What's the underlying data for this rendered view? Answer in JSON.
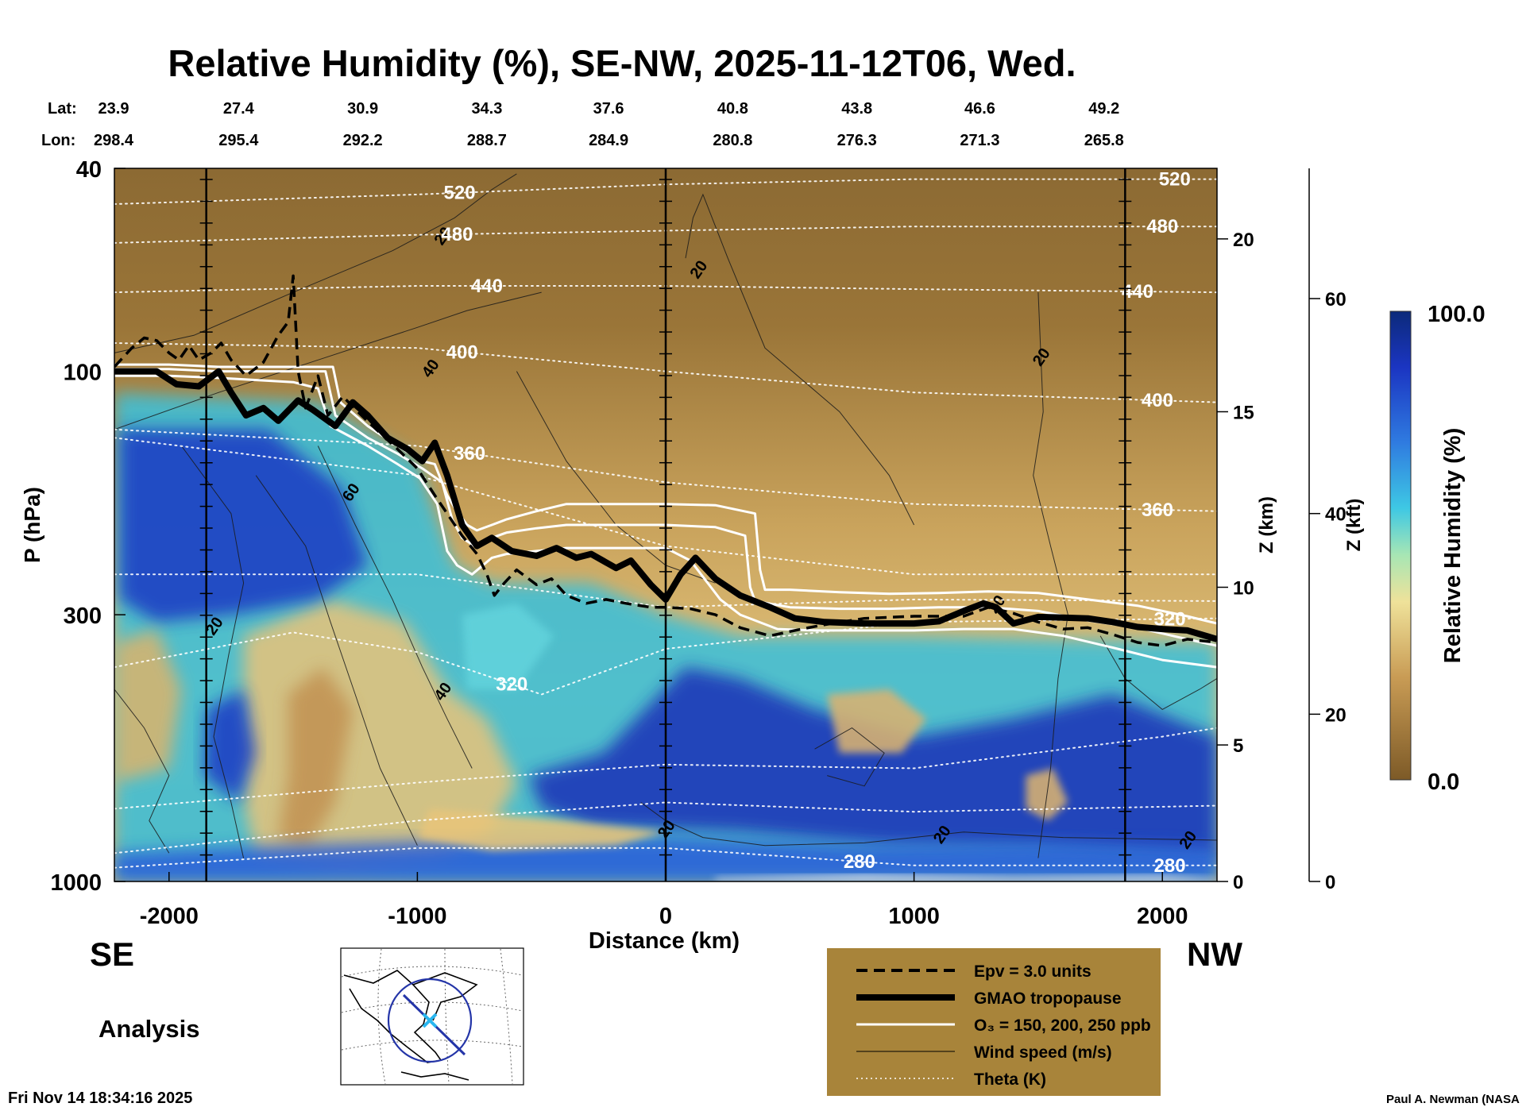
{
  "chart_data": {
    "type": "heatmap",
    "title": "Relative Humidity (%), SE-NW, 2025-11-12T06, Wed.",
    "xlabel": "Distance (km)",
    "ylabel": "P (hPa)",
    "right_axis_1_label": "Z (km)",
    "right_axis_2_label": "Z (kft)",
    "colorbar_label": "Relative Humidity (%)",
    "colorbar_max_label": "100.0",
    "colorbar_min_label": "0.0",
    "colorbar_range": [
      0,
      100
    ],
    "xlim": [
      -2220,
      2220
    ],
    "ylim": [
      1000,
      40
    ],
    "y_scale": "log",
    "x_ticks": [
      {
        "v": -2000,
        "label": "-2000"
      },
      {
        "v": -1000,
        "label": "-1000"
      },
      {
        "v": 0,
        "label": "0"
      },
      {
        "v": 1000,
        "label": "1000"
      },
      {
        "v": 2000,
        "label": "2000"
      }
    ],
    "y_ticks": [
      {
        "p": 40,
        "label": "40"
      },
      {
        "p": 100,
        "label": "100"
      },
      {
        "p": 300,
        "label": "300"
      },
      {
        "p": 1000,
        "label": "1000"
      }
    ],
    "z_km_ticks": [
      {
        "p": 1000,
        "label": "0"
      },
      {
        "p": 540,
        "label": "5"
      },
      {
        "p": 265,
        "label": "10"
      },
      {
        "p": 120,
        "label": "15"
      },
      {
        "p": 55,
        "label": "20"
      }
    ],
    "z_kft_ticks": [
      {
        "p": 1000,
        "label": "0"
      },
      {
        "p": 470,
        "label": "20"
      },
      {
        "p": 190,
        "label": "40"
      },
      {
        "p": 72,
        "label": "60"
      }
    ],
    "lat_label": "Lat:",
    "lon_label": "Lon:",
    "stations": [
      {
        "x": -2220,
        "lat": "23.9",
        "lon": "298.4"
      },
      {
        "x": -1720,
        "lat": "27.4",
        "lon": "295.4"
      },
      {
        "x": -1220,
        "lat": "30.9",
        "lon": "292.2"
      },
      {
        "x": -720,
        "lat": "34.3",
        "lon": "288.7"
      },
      {
        "x": -230,
        "lat": "37.6",
        "lon": "284.9"
      },
      {
        "x": 270,
        "lat": "40.8",
        "lon": "280.8"
      },
      {
        "x": 770,
        "lat": "43.8",
        "lon": "276.3"
      },
      {
        "x": 1265,
        "lat": "46.6",
        "lon": "271.3"
      },
      {
        "x": 1765,
        "lat": "49.2",
        "lon": "265.8"
      }
    ],
    "vertical_markers_km": [
      -1850,
      0,
      1850
    ],
    "tropopause": [
      [
        -2220,
        100
      ],
      [
        -2050,
        100
      ],
      [
        -1970,
        106
      ],
      [
        -1880,
        107
      ],
      [
        -1800,
        100
      ],
      [
        -1750,
        110
      ],
      [
        -1690,
        122
      ],
      [
        -1620,
        118
      ],
      [
        -1560,
        125
      ],
      [
        -1480,
        114
      ],
      [
        -1420,
        119
      ],
      [
        -1330,
        128
      ],
      [
        -1260,
        115
      ],
      [
        -1200,
        122
      ],
      [
        -1120,
        135
      ],
      [
        -1040,
        142
      ],
      [
        -980,
        150
      ],
      [
        -930,
        138
      ],
      [
        -880,
        160
      ],
      [
        -820,
        200
      ],
      [
        -760,
        220
      ],
      [
        -700,
        212
      ],
      [
        -620,
        225
      ],
      [
        -520,
        230
      ],
      [
        -440,
        222
      ],
      [
        -360,
        232
      ],
      [
        -300,
        228
      ],
      [
        -200,
        243
      ],
      [
        -140,
        235
      ],
      [
        -60,
        262
      ],
      [
        0,
        280
      ],
      [
        60,
        250
      ],
      [
        120,
        232
      ],
      [
        200,
        255
      ],
      [
        300,
        275
      ],
      [
        420,
        290
      ],
      [
        520,
        305
      ],
      [
        640,
        310
      ],
      [
        800,
        312
      ],
      [
        1000,
        312
      ],
      [
        1100,
        309
      ],
      [
        1200,
        295
      ],
      [
        1280,
        285
      ],
      [
        1330,
        290
      ],
      [
        1400,
        312
      ],
      [
        1500,
        303
      ],
      [
        1600,
        304
      ],
      [
        1700,
        305
      ],
      [
        1800,
        310
      ],
      [
        1900,
        317
      ],
      [
        2000,
        320
      ],
      [
        2100,
        322
      ],
      [
        2220,
        335
      ]
    ],
    "epv_3": [
      [
        -2220,
        98
      ],
      [
        -2150,
        90
      ],
      [
        -2100,
        86
      ],
      [
        -2050,
        87
      ],
      [
        -2000,
        92
      ],
      [
        -1960,
        95
      ],
      [
        -1920,
        89
      ],
      [
        -1880,
        95
      ],
      [
        -1830,
        92
      ],
      [
        -1790,
        88
      ],
      [
        -1750,
        95
      ],
      [
        -1690,
        102
      ],
      [
        -1620,
        96
      ],
      [
        -1560,
        85
      ],
      [
        -1520,
        80
      ],
      [
        -1500,
        65
      ],
      [
        -1480,
        100
      ],
      [
        -1450,
        118
      ],
      [
        -1400,
        102
      ],
      [
        -1360,
        122
      ],
      [
        -1300,
        112
      ],
      [
        -1240,
        120
      ],
      [
        -1180,
        128
      ],
      [
        -1080,
        142
      ],
      [
        -1000,
        155
      ],
      [
        -930,
        175
      ],
      [
        -880,
        190
      ],
      [
        -820,
        210
      ],
      [
        -760,
        228
      ],
      [
        -720,
        250
      ],
      [
        -690,
        275
      ],
      [
        -650,
        260
      ],
      [
        -600,
        245
      ],
      [
        -520,
        262
      ],
      [
        -460,
        255
      ],
      [
        -400,
        275
      ],
      [
        -320,
        285
      ],
      [
        -240,
        280
      ],
      [
        -160,
        285
      ],
      [
        -60,
        290
      ],
      [
        0,
        290
      ],
      [
        100,
        292
      ],
      [
        200,
        300
      ],
      [
        300,
        318
      ],
      [
        420,
        330
      ],
      [
        520,
        322
      ],
      [
        620,
        315
      ],
      [
        800,
        305
      ],
      [
        1000,
        302
      ],
      [
        1200,
        302
      ],
      [
        1300,
        290
      ],
      [
        1400,
        298
      ],
      [
        1500,
        310
      ],
      [
        1600,
        320
      ],
      [
        1700,
        318
      ],
      [
        1800,
        328
      ],
      [
        1900,
        340
      ],
      [
        2000,
        345
      ],
      [
        2100,
        335
      ],
      [
        2220,
        340
      ]
    ],
    "ozone_150": [
      [
        -2220,
        97
      ],
      [
        -2000,
        97
      ],
      [
        -1800,
        98
      ],
      [
        -1500,
        98
      ],
      [
        -1340,
        98
      ],
      [
        -1310,
        115
      ],
      [
        -1200,
        128
      ],
      [
        -1080,
        140
      ],
      [
        -980,
        150
      ],
      [
        -930,
        152
      ],
      [
        -880,
        175
      ],
      [
        -850,
        185
      ],
      [
        -800,
        200
      ],
      [
        -760,
        205
      ],
      [
        -700,
        200
      ],
      [
        -640,
        195
      ],
      [
        -520,
        188
      ],
      [
        -400,
        182
      ],
      [
        -200,
        182
      ],
      [
        0,
        182
      ],
      [
        200,
        183
      ],
      [
        360,
        190
      ],
      [
        380,
        245
      ],
      [
        400,
        268
      ],
      [
        500,
        268
      ],
      [
        700,
        271
      ],
      [
        900,
        273
      ],
      [
        1100,
        272
      ],
      [
        1300,
        270
      ],
      [
        1500,
        272
      ],
      [
        1700,
        280
      ],
      [
        1900,
        288
      ],
      [
        2100,
        302
      ],
      [
        2220,
        312
      ]
    ],
    "ozone_200": [
      [
        -2220,
        99
      ],
      [
        -2000,
        99
      ],
      [
        -1800,
        100
      ],
      [
        -1500,
        100
      ],
      [
        -1370,
        100
      ],
      [
        -1330,
        122
      ],
      [
        -1200,
        135
      ],
      [
        -1080,
        145
      ],
      [
        -980,
        155
      ],
      [
        -900,
        165
      ],
      [
        -860,
        195
      ],
      [
        -820,
        212
      ],
      [
        -770,
        220
      ],
      [
        -700,
        212
      ],
      [
        -640,
        207
      ],
      [
        -520,
        203
      ],
      [
        -400,
        200
      ],
      [
        -200,
        200
      ],
      [
        0,
        200
      ],
      [
        200,
        202
      ],
      [
        320,
        210
      ],
      [
        340,
        265
      ],
      [
        360,
        282
      ],
      [
        500,
        290
      ],
      [
        700,
        292
      ],
      [
        900,
        292
      ],
      [
        1100,
        290
      ],
      [
        1300,
        290
      ],
      [
        1500,
        295
      ],
      [
        1700,
        308
      ],
      [
        1900,
        318
      ],
      [
        2100,
        335
      ],
      [
        2220,
        345
      ]
    ],
    "ozone_250": [
      [
        -2220,
        102
      ],
      [
        -2000,
        102
      ],
      [
        -1800,
        103
      ],
      [
        -1500,
        105
      ],
      [
        -1400,
        108
      ],
      [
        -1350,
        128
      ],
      [
        -1200,
        140
      ],
      [
        -1080,
        152
      ],
      [
        -990,
        162
      ],
      [
        -920,
        182
      ],
      [
        -880,
        225
      ],
      [
        -840,
        240
      ],
      [
        -780,
        250
      ],
      [
        -700,
        232
      ],
      [
        -640,
        228
      ],
      [
        -520,
        225
      ],
      [
        -400,
        222
      ],
      [
        -200,
        222
      ],
      [
        0,
        222
      ],
      [
        100,
        235
      ],
      [
        220,
        280
      ],
      [
        300,
        300
      ],
      [
        450,
        320
      ],
      [
        600,
        322
      ],
      [
        800,
        322
      ],
      [
        1000,
        322
      ],
      [
        1200,
        320
      ],
      [
        1400,
        320
      ],
      [
        1600,
        330
      ],
      [
        1800,
        348
      ],
      [
        2000,
        368
      ],
      [
        2220,
        380
      ]
    ],
    "theta_levels": [
      {
        "label": "520",
        "label_x": -830,
        "label_x2": 2050,
        "pts": [
          [
            -2220,
            47
          ],
          [
            -1000,
            45
          ],
          [
            0,
            43
          ],
          [
            1000,
            42
          ],
          [
            2220,
            42
          ]
        ]
      },
      {
        "label": "480",
        "label_x": -840,
        "label_x2": 2000,
        "pts": [
          [
            -2220,
            56
          ],
          [
            -1000,
            54
          ],
          [
            0,
            53
          ],
          [
            1000,
            52
          ],
          [
            2220,
            52
          ]
        ]
      },
      {
        "label": "440",
        "label_x": -720,
        "label_x2": 1900,
        "pts": [
          [
            -2220,
            70
          ],
          [
            -1000,
            68
          ],
          [
            0,
            68
          ],
          [
            1000,
            69
          ],
          [
            2220,
            70
          ]
        ]
      },
      {
        "label": "400",
        "label_x": -820,
        "label_x2": 1980,
        "pts": [
          [
            -2220,
            88
          ],
          [
            -1000,
            90
          ],
          [
            0,
            100
          ],
          [
            1000,
            110
          ],
          [
            2220,
            115
          ]
        ]
      },
      {
        "label": "360",
        "label_x": -790,
        "label_x2": 1980,
        "pts": [
          [
            -2220,
            130
          ],
          [
            -1000,
            140
          ],
          [
            0,
            165
          ],
          [
            1000,
            182
          ],
          [
            2220,
            188
          ]
        ]
      },
      {
        "label": "320",
        "label_x": -620,
        "label_x2": 2030,
        "pts": [
          [
            -2220,
            380
          ],
          [
            -1500,
            325
          ],
          [
            -1000,
            355
          ],
          [
            -500,
            430
          ],
          [
            0,
            350
          ],
          [
            1000,
            310
          ],
          [
            2220,
            305
          ]
        ]
      },
      {
        "label": "280",
        "label_x": 780,
        "label_x2": 2030,
        "pts": [
          [
            -2220,
            940
          ],
          [
            -1000,
            860
          ],
          [
            0,
            860
          ],
          [
            1000,
            930
          ],
          [
            2220,
            930
          ]
        ]
      },
      {
        "label": "",
        "pts": [
          [
            -2220,
            135
          ],
          [
            -1000,
            160
          ],
          [
            0,
            220
          ],
          [
            1000,
            250
          ],
          [
            2220,
            250
          ]
        ]
      },
      {
        "label": "",
        "pts": [
          [
            -2220,
            250
          ],
          [
            -1000,
            250
          ],
          [
            0,
            290
          ],
          [
            1000,
            280
          ],
          [
            2220,
            282
          ]
        ]
      },
      {
        "label": "",
        "pts": [
          [
            -2220,
            720
          ],
          [
            -1000,
            640
          ],
          [
            0,
            590
          ],
          [
            1000,
            600
          ],
          [
            2000,
            520
          ],
          [
            2220,
            500
          ]
        ]
      },
      {
        "label": "",
        "pts": [
          [
            -2220,
            880
          ],
          [
            -1000,
            760
          ],
          [
            0,
            700
          ],
          [
            1000,
            730
          ],
          [
            2220,
            710
          ]
        ]
      }
    ],
    "wind_contour_labels": [
      {
        "x": -880,
        "p": 55,
        "text": "20"
      },
      {
        "x": 150,
        "p": 64,
        "text": "20"
      },
      {
        "x": 1530,
        "p": 95,
        "text": "20"
      },
      {
        "x": -930,
        "p": 100,
        "text": "40"
      },
      {
        "x": -1250,
        "p": 175,
        "text": "60"
      },
      {
        "x": -1800,
        "p": 320,
        "text": "20"
      },
      {
        "x": -880,
        "p": 430,
        "text": "40"
      },
      {
        "x": 20,
        "p": 800,
        "text": "20"
      },
      {
        "x": 1130,
        "p": 820,
        "text": "20"
      },
      {
        "x": 2120,
        "p": 840,
        "text": "20"
      },
      {
        "x": 1350,
        "p": 290,
        "text": "20"
      }
    ],
    "legend": [
      {
        "style": "dashed",
        "text": "Epv = 3.0 units"
      },
      {
        "style": "thick",
        "text": "GMAO tropopause"
      },
      {
        "style": "white",
        "text": "O₃ = 150, 200, 250 ppb"
      },
      {
        "style": "thin",
        "text": "Wind speed (m/s)"
      },
      {
        "style": "dotted",
        "text": "Theta (K)"
      }
    ],
    "colors": {
      "dry": "#8a6530",
      "mid": "#e6c87c",
      "moist": "#5fd6e0",
      "wet": "#1838b8",
      "legend_bg": "#a8843a"
    }
  },
  "labels": {
    "se": "SE",
    "nw": "NW",
    "analysis": "Analysis",
    "timestamp": "Fri Nov 14 18:34:16 2025",
    "credit": "Paul A. Newman (NASA"
  }
}
